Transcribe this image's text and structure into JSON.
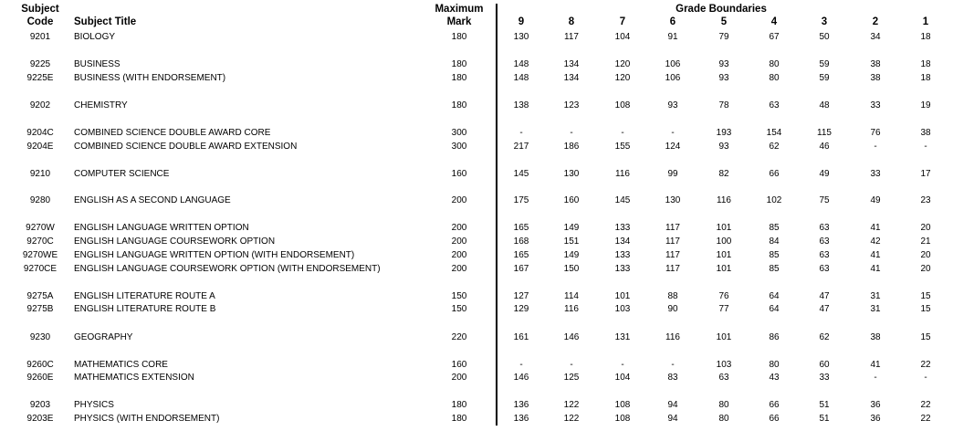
{
  "header": {
    "code_line1": "Subject",
    "code_line2": "Code",
    "title": "Subject Title",
    "max_line1": "Maximum",
    "max_line2": "Mark",
    "grade_boundaries": "Grade Boundaries",
    "grades": [
      "9",
      "8",
      "7",
      "6",
      "5",
      "4",
      "3",
      "2",
      "1"
    ]
  },
  "rows": [
    {
      "code": "9201",
      "title": "BIOLOGY",
      "max": "180",
      "grades": [
        "130",
        "117",
        "104",
        "91",
        "79",
        "67",
        "50",
        "34",
        "18"
      ]
    },
    {
      "code": "9225",
      "title": "BUSINESS",
      "max": "180",
      "grades": [
        "148",
        "134",
        "120",
        "106",
        "93",
        "80",
        "59",
        "38",
        "18"
      ]
    },
    {
      "code": "9225E",
      "title": "BUSINESS (WITH ENDORSEMENT)",
      "max": "180",
      "grades": [
        "148",
        "134",
        "120",
        "106",
        "93",
        "80",
        "59",
        "38",
        "18"
      ]
    },
    {
      "code": "9202",
      "title": "CHEMISTRY",
      "max": "180",
      "grades": [
        "138",
        "123",
        "108",
        "93",
        "78",
        "63",
        "48",
        "33",
        "19"
      ]
    },
    {
      "code": "9204C",
      "title": "COMBINED SCIENCE DOUBLE AWARD CORE",
      "max": "300",
      "grades": [
        "-",
        "-",
        "-",
        "-",
        "193",
        "154",
        "115",
        "76",
        "38"
      ]
    },
    {
      "code": "9204E",
      "title": "COMBINED SCIENCE DOUBLE AWARD EXTENSION",
      "max": "300",
      "grades": [
        "217",
        "186",
        "155",
        "124",
        "93",
        "62",
        "46",
        "-",
        "-"
      ]
    },
    {
      "code": "9210",
      "title": "COMPUTER SCIENCE",
      "max": "160",
      "grades": [
        "145",
        "130",
        "116",
        "99",
        "82",
        "66",
        "49",
        "33",
        "17"
      ]
    },
    {
      "code": "9280",
      "title": "ENGLISH AS A SECOND LANGUAGE",
      "max": "200",
      "grades": [
        "175",
        "160",
        "145",
        "130",
        "116",
        "102",
        "75",
        "49",
        "23"
      ]
    },
    {
      "code": "9270W",
      "title": "ENGLISH LANGUAGE WRITTEN OPTION",
      "max": "200",
      "grades": [
        "165",
        "149",
        "133",
        "117",
        "101",
        "85",
        "63",
        "41",
        "20"
      ]
    },
    {
      "code": "9270C",
      "title": "ENGLISH LANGUAGE COURSEWORK OPTION",
      "max": "200",
      "grades": [
        "168",
        "151",
        "134",
        "117",
        "100",
        "84",
        "63",
        "42",
        "21"
      ]
    },
    {
      "code": "9270WE",
      "title": "ENGLISH LANGUAGE WRITTEN OPTION (WITH ENDORSEMENT)",
      "max": "200",
      "grades": [
        "165",
        "149",
        "133",
        "117",
        "101",
        "85",
        "63",
        "41",
        "20"
      ]
    },
    {
      "code": "9270CE",
      "title": "ENGLISH LANGUAGE COURSEWORK OPTION (WITH ENDORSEMENT)",
      "max": "200",
      "grades": [
        "167",
        "150",
        "133",
        "117",
        "101",
        "85",
        "63",
        "41",
        "20"
      ]
    },
    {
      "code": "9275A",
      "title": "ENGLISH LITERATURE ROUTE A",
      "max": "150",
      "grades": [
        "127",
        "114",
        "101",
        "88",
        "76",
        "64",
        "47",
        "31",
        "15"
      ]
    },
    {
      "code": "9275B",
      "title": "ENGLISH LITERATURE ROUTE B",
      "max": "150",
      "grades": [
        "129",
        "116",
        "103",
        "90",
        "77",
        "64",
        "47",
        "31",
        "15"
      ]
    },
    {
      "code": "9230",
      "title": "GEOGRAPHY",
      "max": "220",
      "grades": [
        "161",
        "146",
        "131",
        "116",
        "101",
        "86",
        "62",
        "38",
        "15"
      ]
    },
    {
      "code": "9260C",
      "title": "MATHEMATICS CORE",
      "max": "160",
      "grades": [
        "-",
        "-",
        "-",
        "-",
        "103",
        "80",
        "60",
        "41",
        "22"
      ]
    },
    {
      "code": "9260E",
      "title": "MATHEMATICS EXTENSION",
      "max": "200",
      "grades": [
        "146",
        "125",
        "104",
        "83",
        "63",
        "43",
        "33",
        "-",
        "-"
      ]
    },
    {
      "code": "9203",
      "title": "PHYSICS",
      "max": "180",
      "grades": [
        "136",
        "122",
        "108",
        "94",
        "80",
        "66",
        "51",
        "36",
        "22"
      ]
    },
    {
      "code": "9203E",
      "title": "PHYSICS (WITH ENDORSEMENT)",
      "max": "180",
      "grades": [
        "136",
        "122",
        "108",
        "94",
        "80",
        "66",
        "51",
        "36",
        "22"
      ]
    }
  ]
}
